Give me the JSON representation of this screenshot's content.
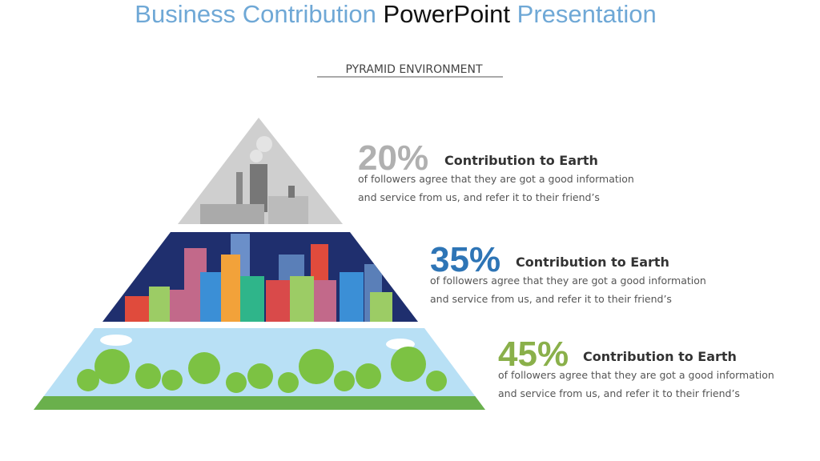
{
  "header": {
    "title": [
      "Business Contribution",
      "PowerPoint",
      "Presentation"
    ],
    "subtitle": "PYRAMID ENVIRONMENT"
  },
  "items": [
    {
      "percent": "20%",
      "heading": "Contribution to Earth",
      "body": [
        "of followers agree that they are got a good information",
        "and service from us, and refer it to their friend’s"
      ]
    },
    {
      "percent": "35%",
      "heading": "Contribution to Earth",
      "body": [
        "of followers agree that they are got a good information",
        "and service from us, and refer it to their friend’s"
      ]
    },
    {
      "percent": "45%",
      "heading": "Contribution to Earth",
      "body": [
        "of followers agree that they are got a good information",
        "and service from us, and refer it to their friend’s"
      ]
    }
  ]
}
